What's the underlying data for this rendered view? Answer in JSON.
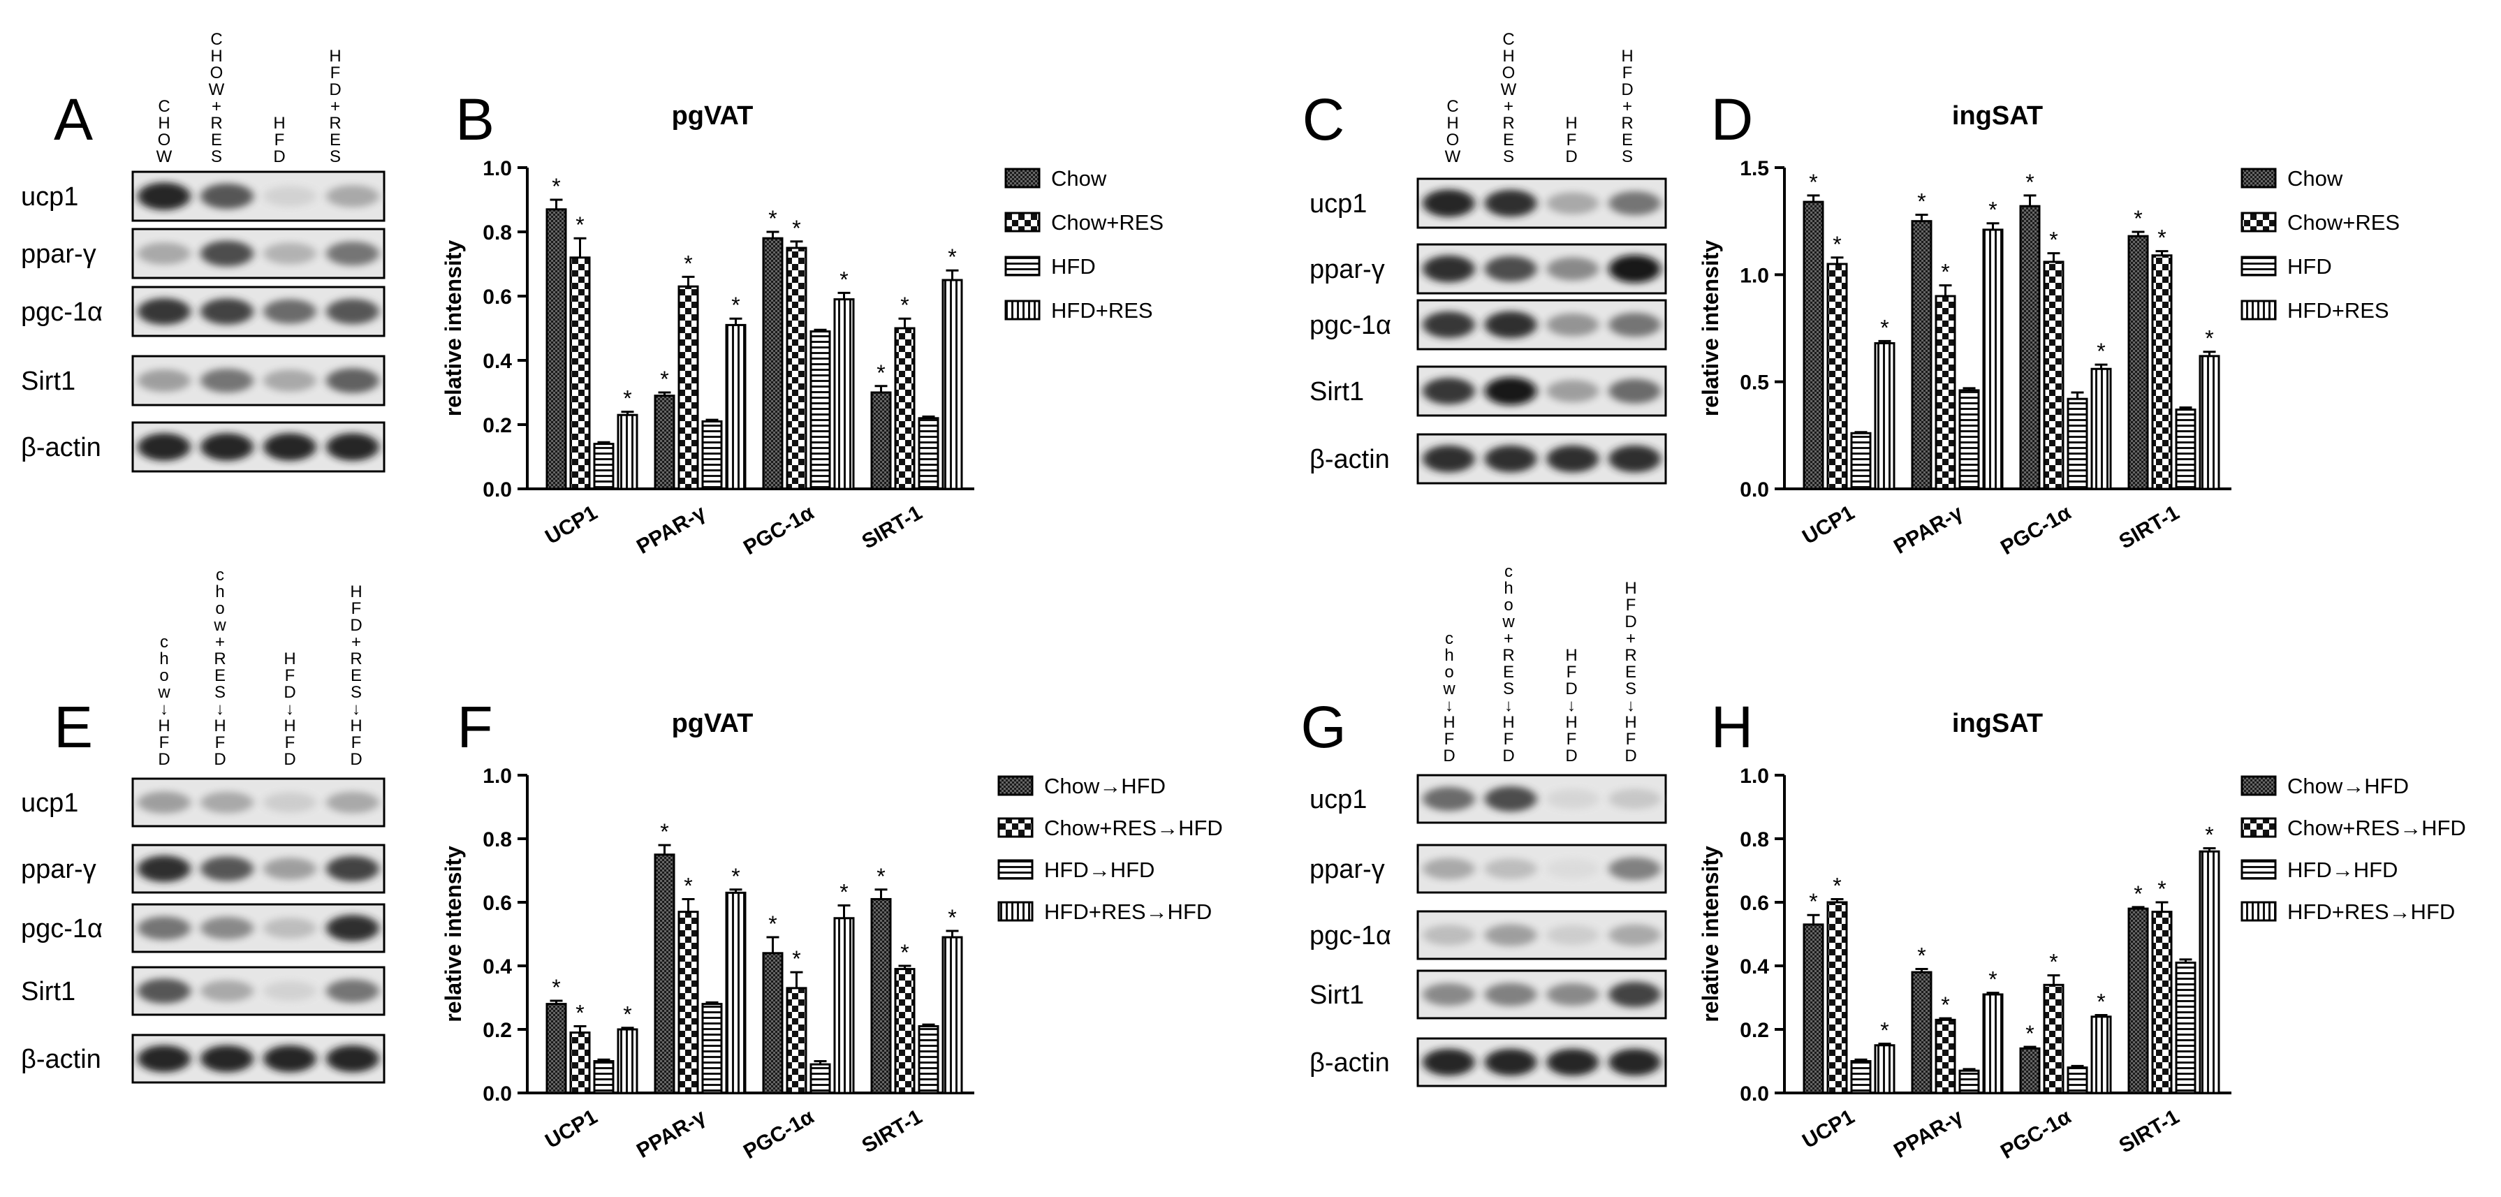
{
  "patterns": {
    "solid_dark": "#222222",
    "stroke": "#000000",
    "background": "#ffffff"
  },
  "blots": [
    {
      "label": "A",
      "lanes": [
        [
          "C",
          "H",
          "O",
          "W"
        ],
        [
          "C",
          "H",
          "O",
          "W",
          "+",
          "R",
          "E",
          "S"
        ],
        [
          "H",
          "F",
          "D"
        ],
        [
          "H",
          "F",
          "D",
          "+",
          "R",
          "E",
          "S"
        ]
      ],
      "bands": [
        {
          "name": "ucp1",
          "intensity": [
            0.95,
            0.7,
            0.1,
            0.3
          ]
        },
        {
          "name": "ppar-γ",
          "intensity": [
            0.3,
            0.75,
            0.25,
            0.55
          ]
        },
        {
          "name": "pgc-1α",
          "intensity": [
            0.85,
            0.8,
            0.6,
            0.7
          ]
        },
        {
          "name": "Sirt1",
          "intensity": [
            0.35,
            0.55,
            0.3,
            0.65
          ]
        },
        {
          "name": "β-actin",
          "intensity": [
            0.95,
            0.95,
            0.95,
            0.95
          ]
        }
      ]
    },
    {
      "label": "C",
      "lanes": [
        [
          "C",
          "H",
          "O",
          "W"
        ],
        [
          "C",
          "H",
          "O",
          "W",
          "+",
          "R",
          "E",
          "S"
        ],
        [
          "H",
          "F",
          "D"
        ],
        [
          "H",
          "F",
          "D",
          "+",
          "R",
          "E",
          "S"
        ]
      ],
      "bands": [
        {
          "name": "ucp1",
          "intensity": [
            0.95,
            0.9,
            0.3,
            0.55
          ]
        },
        {
          "name": "ppar-γ",
          "intensity": [
            0.9,
            0.75,
            0.45,
            1.0
          ]
        },
        {
          "name": "pgc-1α",
          "intensity": [
            0.85,
            0.9,
            0.4,
            0.55
          ]
        },
        {
          "name": "Sirt1",
          "intensity": [
            0.85,
            1.0,
            0.35,
            0.6
          ]
        },
        {
          "name": "β-actin",
          "intensity": [
            0.9,
            0.9,
            0.9,
            0.9
          ]
        }
      ]
    },
    {
      "label": "E",
      "lanes": [
        [
          "c",
          "h",
          "o",
          "w",
          "↓",
          "H",
          "F",
          "D"
        ],
        [
          "c",
          "h",
          "o",
          "w",
          "+",
          "R",
          "E",
          "S",
          "↓",
          "H",
          "F",
          "D"
        ],
        [
          "H",
          "F",
          "D",
          "↓",
          "H",
          "F",
          "D"
        ],
        [
          "H",
          "F",
          "D",
          "+",
          "R",
          "E",
          "S",
          "↓",
          "H",
          "F",
          "D"
        ]
      ],
      "bands": [
        {
          "name": "ucp1",
          "intensity": [
            0.35,
            0.3,
            0.12,
            0.3
          ]
        },
        {
          "name": "ppar-γ",
          "intensity": [
            0.9,
            0.7,
            0.35,
            0.8
          ]
        },
        {
          "name": "pgc-1α",
          "intensity": [
            0.55,
            0.45,
            0.2,
            0.9
          ]
        },
        {
          "name": "Sirt1",
          "intensity": [
            0.7,
            0.3,
            0.1,
            0.55
          ]
        },
        {
          "name": "β-actin",
          "intensity": [
            0.95,
            0.95,
            0.95,
            0.95
          ]
        }
      ]
    },
    {
      "label": "G",
      "lanes": [
        [
          "c",
          "h",
          "o",
          "w",
          "↓",
          "H",
          "F",
          "D"
        ],
        [
          "c",
          "h",
          "o",
          "w",
          "+",
          "R",
          "E",
          "S",
          "↓",
          "H",
          "F",
          "D"
        ],
        [
          "H",
          "F",
          "D",
          "↓",
          "H",
          "F",
          "D"
        ],
        [
          "H",
          "F",
          "D",
          "+",
          "R",
          "E",
          "S",
          "↓",
          "H",
          "F",
          "D"
        ]
      ],
      "bands": [
        {
          "name": "ucp1",
          "intensity": [
            0.6,
            0.75,
            0.08,
            0.15
          ]
        },
        {
          "name": "ppar-γ",
          "intensity": [
            0.3,
            0.2,
            0.05,
            0.5
          ]
        },
        {
          "name": "pgc-1α",
          "intensity": [
            0.2,
            0.35,
            0.12,
            0.3
          ]
        },
        {
          "name": "Sirt1",
          "intensity": [
            0.45,
            0.5,
            0.45,
            0.8
          ]
        },
        {
          "name": "β-actin",
          "intensity": [
            0.95,
            0.95,
            0.95,
            0.95
          ]
        }
      ]
    }
  ],
  "chart_data": [
    {
      "label": "B",
      "type": "bar",
      "title": "pgVAT",
      "ylabel": "relative intensity",
      "ylim": [
        0,
        1.0
      ],
      "yticks": [
        "0.0",
        "0.2",
        "0.4",
        "0.6",
        "0.8",
        "1.0"
      ],
      "ytick_values": [
        0,
        0.2,
        0.4,
        0.6,
        0.8,
        1.0
      ],
      "categories": [
        "UCP1",
        "PPAR-γ",
        "PGC-1α",
        "SIRT-1"
      ],
      "legend": "right",
      "series": [
        {
          "name": "Chow",
          "pattern": "dense",
          "values": [
            0.87,
            0.29,
            0.78,
            0.3
          ],
          "errors": [
            0.03,
            0.01,
            0.02,
            0.02
          ],
          "sig": [
            true,
            true,
            true,
            true
          ]
        },
        {
          "name": "Chow+RES",
          "pattern": "check",
          "values": [
            0.72,
            0.63,
            0.75,
            0.5
          ],
          "errors": [
            0.06,
            0.03,
            0.02,
            0.03
          ],
          "sig": [
            true,
            true,
            true,
            true
          ]
        },
        {
          "name": "HFD",
          "pattern": "hlines",
          "values": [
            0.14,
            0.21,
            0.49,
            0.22
          ],
          "errors": [
            0.005,
            0.005,
            0.005,
            0.005
          ],
          "sig": [
            false,
            false,
            false,
            false
          ]
        },
        {
          "name": "HFD+RES",
          "pattern": "vlines",
          "values": [
            0.23,
            0.51,
            0.59,
            0.65
          ],
          "errors": [
            0.01,
            0.02,
            0.02,
            0.03
          ],
          "sig": [
            true,
            true,
            true,
            true
          ]
        }
      ]
    },
    {
      "label": "D",
      "type": "bar",
      "title": "ingSAT",
      "ylabel": "relative intensity",
      "ylim": [
        0,
        1.5
      ],
      "yticks": [
        "0.0",
        "0.5",
        "1.0",
        "1.5"
      ],
      "ytick_values": [
        0,
        0.5,
        1.0,
        1.5
      ],
      "categories": [
        "UCP1",
        "PPAR-γ",
        "PGC-1α",
        "SIRT-1"
      ],
      "legend": "right",
      "series": [
        {
          "name": "Chow",
          "pattern": "dense",
          "values": [
            1.34,
            1.25,
            1.32,
            1.18
          ],
          "errors": [
            0.03,
            0.03,
            0.05,
            0.02
          ],
          "sig": [
            true,
            true,
            true,
            true
          ]
        },
        {
          "name": "Chow+RES",
          "pattern": "check",
          "values": [
            1.05,
            0.9,
            1.06,
            1.09
          ],
          "errors": [
            0.03,
            0.05,
            0.04,
            0.02
          ],
          "sig": [
            true,
            true,
            true,
            true
          ]
        },
        {
          "name": "HFD",
          "pattern": "hlines",
          "values": [
            0.26,
            0.46,
            0.42,
            0.37
          ],
          "errors": [
            0.005,
            0.01,
            0.03,
            0.01
          ],
          "sig": [
            false,
            false,
            false,
            false
          ]
        },
        {
          "name": "HFD+RES",
          "pattern": "vlines",
          "values": [
            0.68,
            1.21,
            0.56,
            0.62
          ],
          "errors": [
            0.01,
            0.03,
            0.02,
            0.02
          ],
          "sig": [
            true,
            true,
            true,
            true
          ]
        }
      ]
    },
    {
      "label": "F",
      "type": "bar",
      "title": "pgVAT",
      "ylabel": "relative intensity",
      "ylim": [
        0,
        1.0
      ],
      "yticks": [
        "0.0",
        "0.2",
        "0.4",
        "0.6",
        "0.8",
        "1.0"
      ],
      "ytick_values": [
        0,
        0.2,
        0.4,
        0.6,
        0.8,
        1.0
      ],
      "categories": [
        "UCP1",
        "PPAR-γ",
        "PGC-1α",
        "SIRT-1"
      ],
      "legend": "right",
      "series": [
        {
          "name": "Chow→HFD",
          "pattern": "dense",
          "values": [
            0.28,
            0.75,
            0.44,
            0.61
          ],
          "errors": [
            0.01,
            0.03,
            0.05,
            0.03
          ],
          "sig": [
            true,
            true,
            true,
            true
          ]
        },
        {
          "name": "Chow+RES→HFD",
          "pattern": "check",
          "values": [
            0.19,
            0.57,
            0.33,
            0.39
          ],
          "errors": [
            0.02,
            0.04,
            0.05,
            0.01
          ],
          "sig": [
            true,
            true,
            true,
            true
          ]
        },
        {
          "name": "HFD→HFD",
          "pattern": "hlines",
          "values": [
            0.1,
            0.28,
            0.09,
            0.21
          ],
          "errors": [
            0.005,
            0.005,
            0.01,
            0.005
          ],
          "sig": [
            false,
            false,
            false,
            false
          ]
        },
        {
          "name": "HFD+RES→HFD",
          "pattern": "vlines",
          "values": [
            0.2,
            0.63,
            0.55,
            0.49
          ],
          "errors": [
            0.005,
            0.01,
            0.04,
            0.02
          ],
          "sig": [
            true,
            true,
            true,
            true
          ]
        }
      ]
    },
    {
      "label": "H",
      "type": "bar",
      "title": "ingSAT",
      "ylabel": "relative intensity",
      "ylim": [
        0,
        1.0
      ],
      "yticks": [
        "0.0",
        "0.2",
        "0.4",
        "0.6",
        "0.8",
        "1.0"
      ],
      "ytick_values": [
        0,
        0.2,
        0.4,
        0.6,
        0.8,
        1.0
      ],
      "categories": [
        "UCP1",
        "PPAR-γ",
        "PGC-1α",
        "SIRT-1"
      ],
      "legend": "right",
      "series": [
        {
          "name": "Chow→HFD",
          "pattern": "dense",
          "values": [
            0.53,
            0.38,
            0.14,
            0.58
          ],
          "errors": [
            0.03,
            0.01,
            0.005,
            0.005
          ],
          "sig": [
            true,
            true,
            true,
            true
          ]
        },
        {
          "name": "Chow+RES→HFD",
          "pattern": "check",
          "values": [
            0.6,
            0.23,
            0.34,
            0.57
          ],
          "errors": [
            0.01,
            0.005,
            0.03,
            0.03
          ],
          "sig": [
            true,
            true,
            true,
            true
          ]
        },
        {
          "name": "HFD→HFD",
          "pattern": "hlines",
          "values": [
            0.1,
            0.07,
            0.08,
            0.41
          ],
          "errors": [
            0.005,
            0.005,
            0.005,
            0.01
          ],
          "sig": [
            false,
            false,
            false,
            false
          ]
        },
        {
          "name": "HFD+RES→HFD",
          "pattern": "vlines",
          "values": [
            0.15,
            0.31,
            0.24,
            0.76
          ],
          "errors": [
            0.005,
            0.005,
            0.005,
            0.01
          ],
          "sig": [
            true,
            true,
            true,
            true
          ]
        }
      ]
    }
  ]
}
